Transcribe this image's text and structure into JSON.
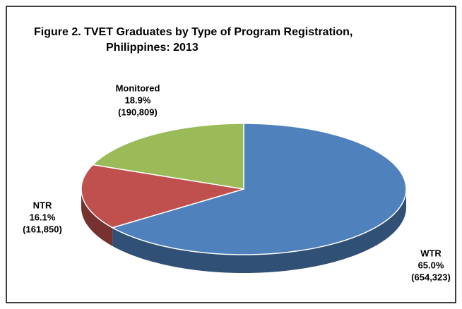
{
  "chart_data": {
    "type": "pie",
    "title_lines": [
      "Figure 2.  TVET Graduates by Type of Program Registration,",
      "Philippines:  2013"
    ],
    "categories": [
      "WTR",
      "NTR",
      "Monitored"
    ],
    "values": [
      654323,
      161850,
      190809
    ],
    "value_labels": [
      "(654,323)",
      "(161,850)",
      "(190,809)"
    ],
    "percents": [
      65.0,
      16.1,
      18.9
    ],
    "percent_labels": [
      "65.0%",
      "16.1%",
      "18.9%"
    ],
    "colors": [
      "#4f81bd",
      "#c0504d",
      "#9bbb59"
    ],
    "start_angle": 0,
    "direction": "clockwise",
    "three_d": true
  }
}
